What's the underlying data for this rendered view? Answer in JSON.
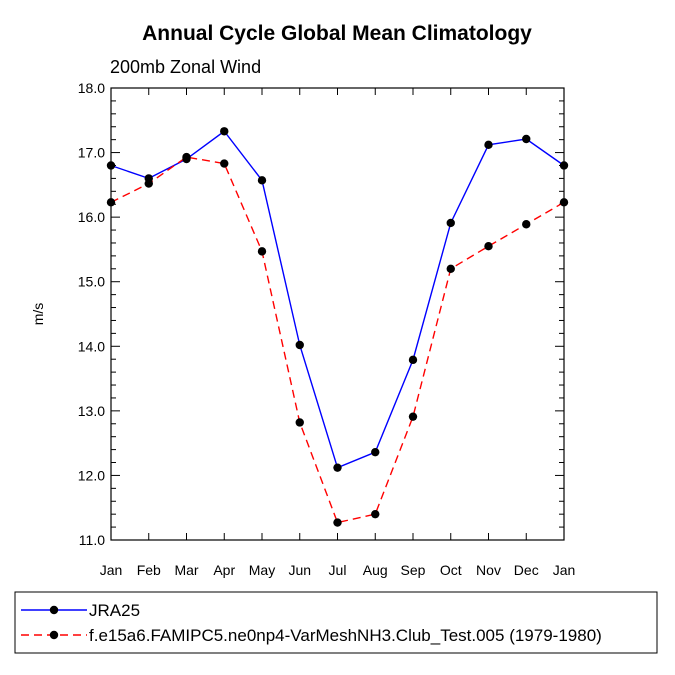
{
  "chart_data": {
    "type": "line",
    "title": "Annual Cycle Global Mean Climatology",
    "subtitle": "200mb Zonal Wind",
    "xlabel": "",
    "ylabel": "m/s",
    "categories": [
      "Jan",
      "Feb",
      "Mar",
      "Apr",
      "May",
      "Jun",
      "Jul",
      "Aug",
      "Sep",
      "Oct",
      "Nov",
      "Dec",
      "Jan"
    ],
    "ylim": [
      11.0,
      18.0
    ],
    "yticks": [
      "11.0",
      "12.0",
      "13.0",
      "14.0",
      "15.0",
      "16.0",
      "17.0",
      "18.0"
    ],
    "series": [
      {
        "name": "JRA25",
        "color": "#0000ff",
        "dash": "solid",
        "values": [
          16.8,
          16.6,
          16.9,
          17.33,
          16.57,
          14.02,
          12.12,
          12.36,
          13.79,
          15.91,
          17.12,
          17.21,
          16.8
        ]
      },
      {
        "name": "f.e15a6.FAMIPC5.ne0np4-VarMeshNH3.Club_Test.005 (1979-1980)",
        "color": "#ff0000",
        "dash": "dashed",
        "values": [
          16.23,
          16.52,
          16.93,
          16.83,
          15.47,
          12.82,
          11.27,
          11.4,
          12.91,
          15.2,
          15.55,
          15.89,
          16.23
        ]
      }
    ],
    "legend_position": "bottom-left",
    "grid": false
  }
}
